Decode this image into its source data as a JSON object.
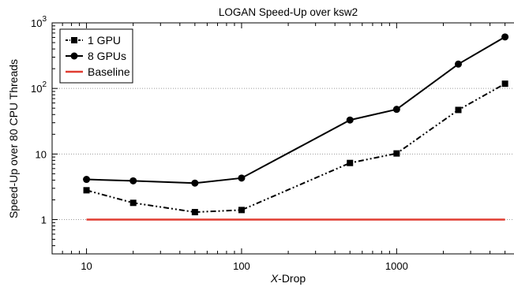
{
  "chart_data": {
    "type": "line",
    "title": "LOGAN Speed-Up over ksw2",
    "xlabel_italic": "X",
    "xlabel_rest": "-Drop",
    "ylabel": "Speed-Up over 80 CPU Threads",
    "x_scale": "log",
    "y_scale": "log",
    "xlim": [
      6,
      6500
    ],
    "ylim": [
      0.3,
      1000
    ],
    "x_ticks": [
      10,
      100,
      1000
    ],
    "x_tick_labels": [
      "10",
      "100",
      "1000"
    ],
    "y_ticks": [
      1,
      10,
      100,
      1000
    ],
    "y_tick_labels_base": [
      "1",
      "10",
      "10",
      "10"
    ],
    "y_tick_labels_exp": [
      "",
      "",
      "2",
      "3"
    ],
    "grid": "horizontal-dotted-at-major-y",
    "legend_position": "top-left",
    "series": [
      {
        "name": "1 GPU",
        "color": "#000000",
        "line_style": "dash-dot",
        "marker": "square",
        "x": [
          10,
          20,
          50,
          100,
          500,
          1000,
          2500,
          5000
        ],
        "y": [
          2.8,
          1.8,
          1.3,
          1.4,
          7.3,
          10.2,
          47,
          118
        ]
      },
      {
        "name": "8 GPUs",
        "color": "#000000",
        "line_style": "solid",
        "marker": "circle",
        "x": [
          10,
          20,
          50,
          100,
          500,
          1000,
          2500,
          5000
        ],
        "y": [
          4.1,
          3.9,
          3.6,
          4.3,
          33,
          48,
          235,
          610
        ]
      },
      {
        "name": "Baseline",
        "color": "#e03c31",
        "line_style": "solid",
        "marker": "none",
        "x": [
          10,
          5000
        ],
        "y": [
          1,
          1
        ]
      }
    ]
  }
}
